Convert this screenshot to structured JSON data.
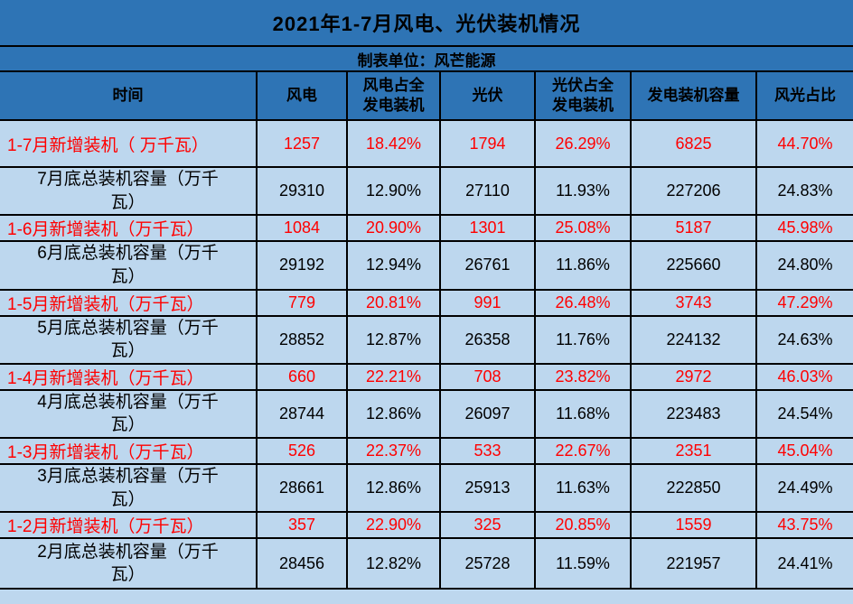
{
  "chart_data": {
    "type": "table",
    "title": "2021年1-7月风电、光伏装机情况",
    "subtitle": "制表单位：风芒能源",
    "columns": [
      "时间",
      "风电",
      "风电占全发电装机",
      "光伏",
      "光伏占全发电装机",
      "发电装机容量",
      "风光占比"
    ],
    "rows": [
      {
        "type": "new",
        "label": "1-7月新增装机（ 万千瓦）",
        "values": [
          "1257",
          "18.42%",
          "1794",
          "26.29%",
          "6825",
          "44.70%"
        ]
      },
      {
        "type": "total",
        "label": "7月底总装机容量（万千瓦）",
        "values": [
          "29310",
          "12.90%",
          "27110",
          "11.93%",
          "227206",
          "24.83%"
        ]
      },
      {
        "type": "new",
        "label": "1-6月新增装机（万千瓦）",
        "values": [
          "1084",
          "20.90%",
          "1301",
          "25.08%",
          "5187",
          "45.98%"
        ]
      },
      {
        "type": "total",
        "label": "6月底总装机容量（万千瓦）",
        "values": [
          "29192",
          "12.94%",
          "26761",
          "11.86%",
          "225660",
          "24.80%"
        ]
      },
      {
        "type": "new",
        "label": "1-5月新增装机（万千瓦）",
        "values": [
          "779",
          "20.81%",
          "991",
          "26.48%",
          "3743",
          "47.29%"
        ]
      },
      {
        "type": "total",
        "label": "5月底总装机容量（万千瓦）",
        "values": [
          "28852",
          "12.87%",
          "26358",
          "11.76%",
          "224132",
          "24.63%"
        ]
      },
      {
        "type": "new",
        "label": "1-4月新增装机（万千瓦）",
        "values": [
          "660",
          "22.21%",
          "708",
          "23.82%",
          "2972",
          "46.03%"
        ]
      },
      {
        "type": "total",
        "label": "4月底总装机容量（万千瓦）",
        "values": [
          "28744",
          "12.86%",
          "26097",
          "11.68%",
          "223483",
          "24.54%"
        ]
      },
      {
        "type": "new",
        "label": "1-3月新增装机（万千瓦）",
        "values": [
          "526",
          "22.37%",
          "533",
          "22.67%",
          "2351",
          "45.04%"
        ]
      },
      {
        "type": "total",
        "label": "3月底总装机容量（万千瓦）",
        "values": [
          "28661",
          "12.86%",
          "25913",
          "11.63%",
          "222850",
          "24.49%"
        ]
      },
      {
        "type": "new",
        "label": "1-2月新增装机（万千瓦）",
        "values": [
          "357",
          "22.90%",
          "325",
          "20.85%",
          "1559",
          "43.75%"
        ]
      },
      {
        "type": "total",
        "label": "2月底总装机容量（万千瓦）",
        "values": [
          "28456",
          "12.82%",
          "25728",
          "11.59%",
          "221957",
          "24.41%"
        ]
      }
    ]
  },
  "colors": {
    "header_bg": "#2E74B5",
    "body_bg": "#BDD7EE",
    "red_text": "#FF0000",
    "text": "#000000",
    "border": "#000000"
  }
}
